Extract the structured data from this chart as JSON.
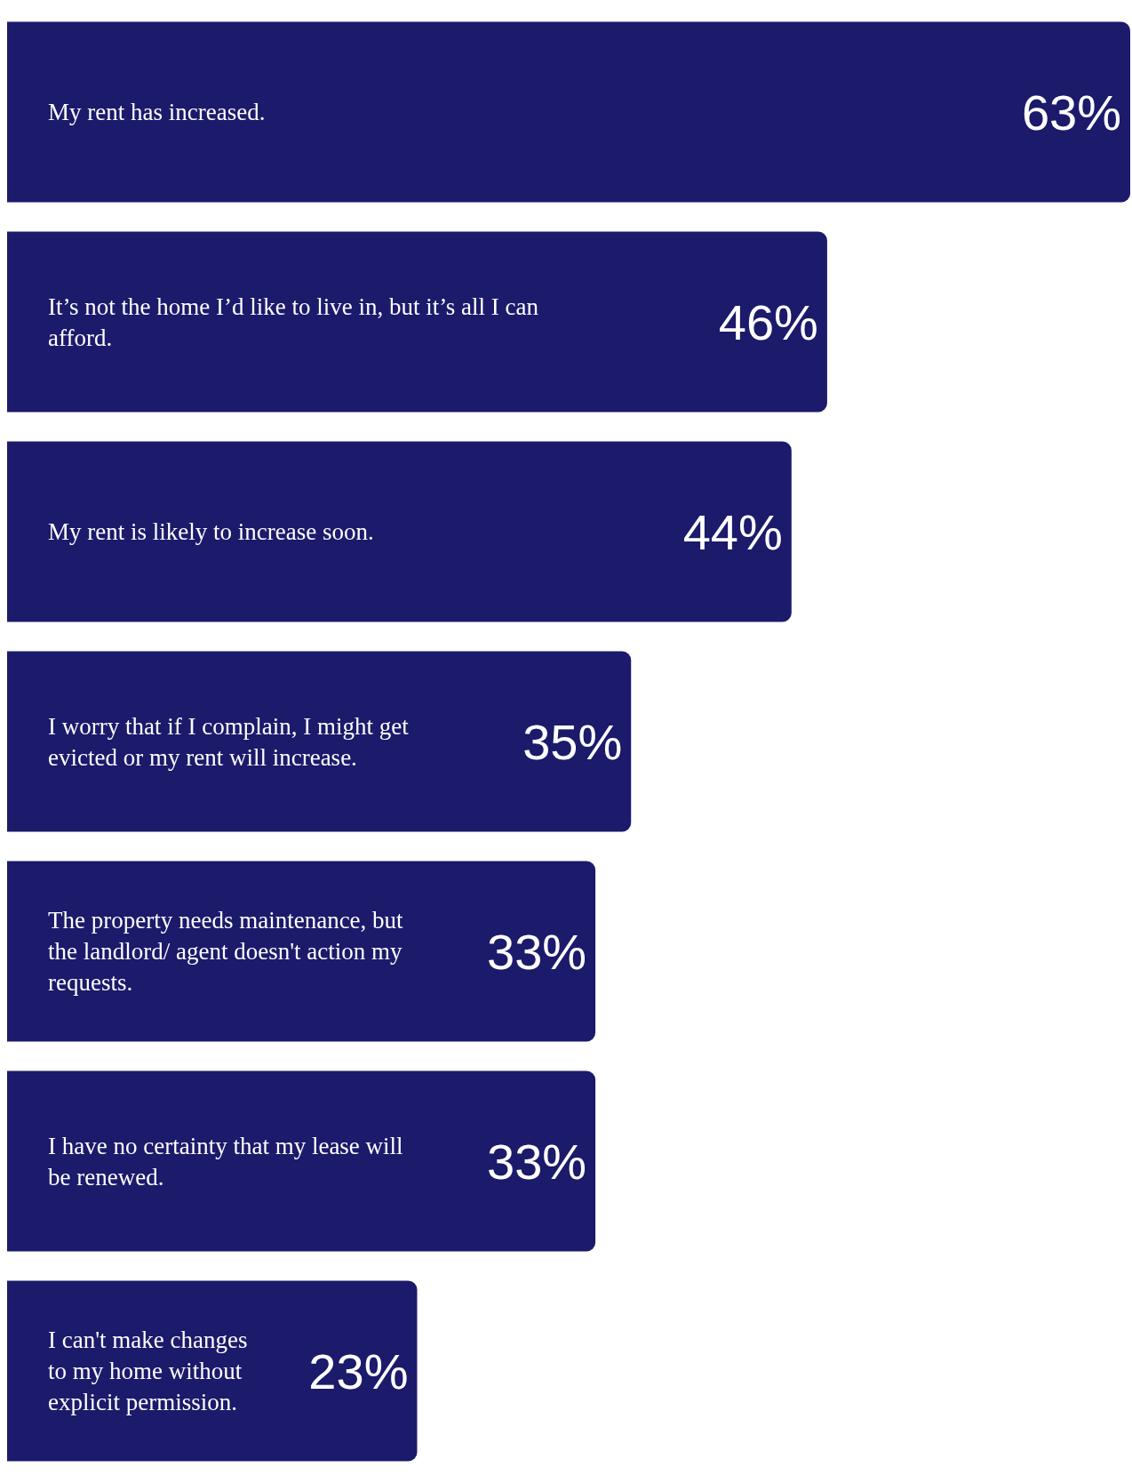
{
  "chart_data": {
    "type": "bar",
    "orientation": "horizontal",
    "color": "#1b1a6b",
    "categories": [
      "My rent has increased.",
      "It’s not the home I’d like to live in, but it’s all I can afford.",
      "My rent is likely to increase soon.",
      "I worry that if I complain, I might get evicted or my rent will increase.",
      "The property needs maintenance, but the landlord/ agent doesn't action my requests.",
      "I have no certainty that my lease will be renewed.",
      "I can't make changes to my home without explicit permission."
    ],
    "values": [
      63,
      46,
      44,
      35,
      33,
      33,
      23
    ],
    "value_labels": [
      "63%",
      "46%",
      "44%",
      "35%",
      "33%",
      "33%",
      "23%"
    ],
    "legend": false
  }
}
